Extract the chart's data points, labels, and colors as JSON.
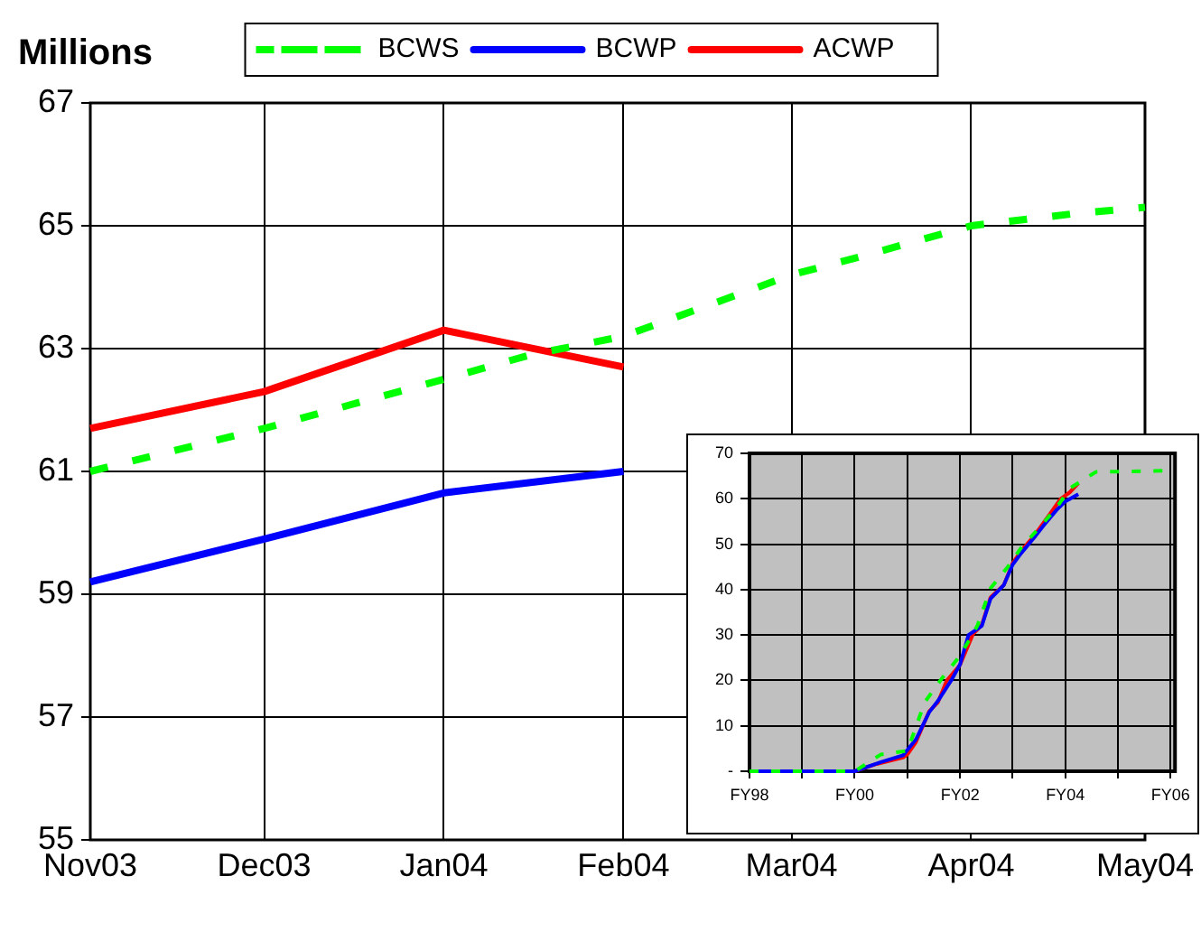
{
  "chart_data": [
    {
      "type": "line",
      "ylabel": "Millions",
      "xlim": [
        "2003-11",
        "2004-05"
      ],
      "xticks": [
        {
          "value": "2003-11",
          "label": "Nov03"
        },
        {
          "value": "2003-12",
          "label": "Dec03"
        },
        {
          "value": "2004-01",
          "label": "Jan04"
        },
        {
          "value": "2004-02",
          "label": "Feb04"
        },
        {
          "value": "2004-03",
          "label": "Mar04"
        },
        {
          "value": "2004-04",
          "label": "Apr04"
        },
        {
          "value": "2004-05",
          "label": "May04"
        }
      ],
      "ylim": [
        55,
        67
      ],
      "yticks": [
        55,
        57,
        59,
        61,
        63,
        65,
        67
      ],
      "grid": true,
      "legend": "top",
      "marker": "none",
      "series": [
        {
          "name": "BCWS",
          "color": "#00ff00",
          "line_style": "dashed",
          "x": [
            "2003-11",
            "2003-12",
            "2004-01",
            "2004-01-16",
            "2004-02",
            "2004-03",
            "2004-03-13",
            "2004-04",
            "2004-04-19",
            "2004-05"
          ],
          "values": [
            61.0,
            61.7,
            62.5,
            62.9,
            63.2,
            64.2,
            64.5,
            65.0,
            65.2,
            65.3
          ]
        },
        {
          "name": "BCWP",
          "color": "#0000ff",
          "line_style": "solid",
          "x": [
            "2003-11",
            "2003-12",
            "2004-01",
            "2004-02"
          ],
          "values": [
            59.2,
            59.9,
            60.65,
            61.0
          ]
        },
        {
          "name": "ACWP",
          "color": "#ff0000",
          "line_style": "solid",
          "x": [
            "2003-11",
            "2003-12",
            "2004-01",
            "2004-02"
          ],
          "values": [
            61.7,
            62.3,
            63.3,
            62.7
          ]
        }
      ]
    },
    {
      "type": "line",
      "xlim": [
        "1998",
        "2006-02"
      ],
      "xticks": [
        {
          "value": "1998",
          "label": "FY98"
        },
        {
          "value": "1999",
          "label": null
        },
        {
          "value": "2000",
          "label": "FY00"
        },
        {
          "value": "2001",
          "label": null
        },
        {
          "value": "2002",
          "label": "FY02"
        },
        {
          "value": "2003",
          "label": null
        },
        {
          "value": "2004",
          "label": "FY04"
        },
        {
          "value": "2005",
          "label": null
        },
        {
          "value": "2006",
          "label": "FY06"
        }
      ],
      "ylim": [
        0,
        70
      ],
      "yticks": [
        {
          "value": 0,
          "label": "-"
        },
        10,
        20,
        30,
        40,
        50,
        60,
        70
      ],
      "grid": true,
      "legend": false,
      "marker": "none",
      "series": [
        {
          "color": "#00ff00",
          "line_style": "dashed",
          "x": [
            "1998-01",
            "2000-01",
            "2000-07",
            "2001-01",
            "2001-05",
            "2001-09",
            "2002-01",
            "2002-05",
            "2002-08",
            "2002-12",
            "2003-03",
            "2003-07",
            "2003-11",
            "2004-02",
            "2004-08",
            "2006-02"
          ],
          "values": [
            0,
            0,
            3.7,
            4.5,
            15.2,
            20.6,
            25.4,
            32,
            40.3,
            45.1,
            49.2,
            53.5,
            58,
            62.3,
            65.9,
            66.2
          ]
        },
        {
          "color": "#0000ff",
          "line_style": "solid",
          "x": [
            "1998-01",
            "2000-01",
            "2000-07",
            "2000-12",
            "2001-03",
            "2001-06",
            "2001-08",
            "2001-11",
            "2002-01",
            "2002-03",
            "2002-06",
            "2002-08",
            "2002-11",
            "2003-01",
            "2003-03",
            "2003-06",
            "2003-08",
            "2003-11",
            "2004-01",
            "2004-04"
          ],
          "values": [
            0,
            0,
            2,
            3.5,
            7,
            13,
            15.5,
            20,
            23.5,
            30,
            32,
            38,
            41,
            45.5,
            48,
            51.5,
            54,
            57.5,
            59.4,
            61
          ]
        },
        {
          "color": "#ff0000",
          "line_style": "solid",
          "x": [
            "1998-01",
            "2000-01",
            "2000-06",
            "2000-12",
            "2001-01",
            "2001-03",
            "2001-06",
            "2001-08",
            "2001-10",
            "2002-01",
            "2002-04",
            "2002-06",
            "2002-08",
            "2002-11",
            "2003-01",
            "2003-03",
            "2003-06",
            "2003-08",
            "2003-10",
            "2003-12",
            "2004-02",
            "2004-04"
          ],
          "values": [
            0,
            0,
            1.6,
            3,
            3.7,
            6.4,
            13.2,
            15.2,
            20,
            23.4,
            30.2,
            32.2,
            38.3,
            41,
            45.8,
            48.5,
            51.9,
            54.6,
            57.3,
            60,
            61.4,
            63.4
          ]
        }
      ]
    }
  ]
}
